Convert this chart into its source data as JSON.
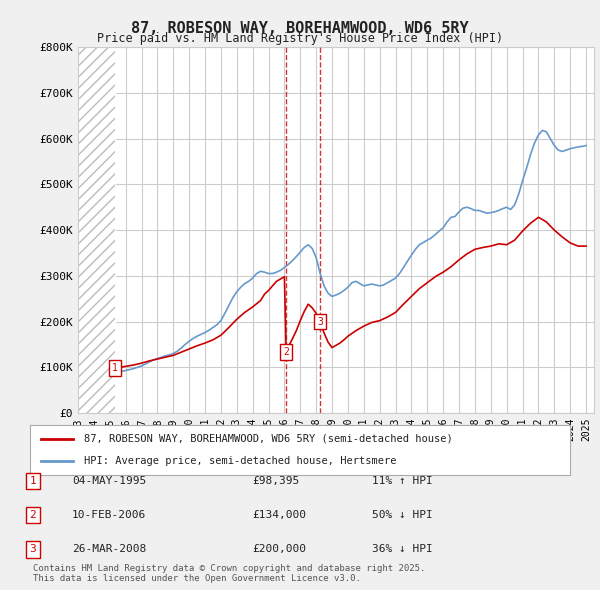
{
  "title": "87, ROBESON WAY, BOREHAMWOOD, WD6 5RY",
  "subtitle": "Price paid vs. HM Land Registry's House Price Index (HPI)",
  "background_color": "#f0f0f0",
  "plot_bg_color": "#ffffff",
  "hatch_color": "#cccccc",
  "grid_color": "#cccccc",
  "red_line_color": "#cc0000",
  "blue_line_color": "#6699cc",
  "ylim": [
    0,
    800000
  ],
  "yticks": [
    0,
    100000,
    200000,
    300000,
    400000,
    500000,
    600000,
    700000,
    800000
  ],
  "ytick_labels": [
    "£0",
    "£100K",
    "£200K",
    "£300K",
    "£400K",
    "£500K",
    "£600K",
    "£700K",
    "£800K"
  ],
  "xlim_start": 1993.0,
  "xlim_end": 2025.5,
  "transactions": [
    {
      "date_num": 1995.34,
      "price": 98395,
      "label": "1"
    },
    {
      "date_num": 2006.11,
      "price": 134000,
      "label": "2"
    },
    {
      "date_num": 2008.23,
      "price": 200000,
      "label": "3"
    }
  ],
  "transaction_table": [
    {
      "num": "1",
      "date": "04-MAY-1995",
      "price": "£98,395",
      "hpi": "11% ↑ HPI"
    },
    {
      "num": "2",
      "date": "10-FEB-2006",
      "price": "£134,000",
      "hpi": "50% ↓ HPI"
    },
    {
      "num": "3",
      "date": "26-MAR-2008",
      "price": "£200,000",
      "hpi": "36% ↓ HPI"
    }
  ],
  "legend_line1": "87, ROBESON WAY, BOREHAMWOOD, WD6 5RY (semi-detached house)",
  "legend_line2": "HPI: Average price, semi-detached house, Hertsmere",
  "footer": "Contains HM Land Registry data © Crown copyright and database right 2025.\nThis data is licensed under the Open Government Licence v3.0.",
  "hpi_data": {
    "years": [
      1995.0,
      1995.25,
      1995.5,
      1995.75,
      1996.0,
      1996.25,
      1996.5,
      1996.75,
      1997.0,
      1997.25,
      1997.5,
      1997.75,
      1998.0,
      1998.25,
      1998.5,
      1998.75,
      1999.0,
      1999.25,
      1999.5,
      1999.75,
      2000.0,
      2000.25,
      2000.5,
      2000.75,
      2001.0,
      2001.25,
      2001.5,
      2001.75,
      2002.0,
      2002.25,
      2002.5,
      2002.75,
      2003.0,
      2003.25,
      2003.5,
      2003.75,
      2004.0,
      2004.25,
      2004.5,
      2004.75,
      2005.0,
      2005.25,
      2005.5,
      2005.75,
      2006.0,
      2006.25,
      2006.5,
      2006.75,
      2007.0,
      2007.25,
      2007.5,
      2007.75,
      2008.0,
      2008.25,
      2008.5,
      2008.75,
      2009.0,
      2009.25,
      2009.5,
      2009.75,
      2010.0,
      2010.25,
      2010.5,
      2010.75,
      2011.0,
      2011.25,
      2011.5,
      2011.75,
      2012.0,
      2012.25,
      2012.5,
      2012.75,
      2013.0,
      2013.25,
      2013.5,
      2013.75,
      2014.0,
      2014.25,
      2014.5,
      2014.75,
      2015.0,
      2015.25,
      2015.5,
      2015.75,
      2016.0,
      2016.25,
      2016.5,
      2016.75,
      2017.0,
      2017.25,
      2017.5,
      2017.75,
      2018.0,
      2018.25,
      2018.5,
      2018.75,
      2019.0,
      2019.25,
      2019.5,
      2019.75,
      2020.0,
      2020.25,
      2020.5,
      2020.75,
      2021.0,
      2021.25,
      2021.5,
      2021.75,
      2022.0,
      2022.25,
      2022.5,
      2022.75,
      2023.0,
      2023.25,
      2023.5,
      2023.75,
      2024.0,
      2024.25,
      2024.5,
      2024.75,
      2025.0
    ],
    "values": [
      88000,
      89000,
      90000,
      91000,
      93000,
      95000,
      97000,
      100000,
      103000,
      107000,
      112000,
      116000,
      119000,
      122000,
      125000,
      127000,
      130000,
      135000,
      142000,
      150000,
      157000,
      163000,
      168000,
      172000,
      176000,
      181000,
      187000,
      193000,
      202000,
      218000,
      235000,
      252000,
      265000,
      275000,
      283000,
      288000,
      295000,
      305000,
      310000,
      308000,
      305000,
      305000,
      308000,
      312000,
      318000,
      325000,
      333000,
      342000,
      352000,
      362000,
      368000,
      360000,
      340000,
      305000,
      278000,
      262000,
      255000,
      258000,
      262000,
      268000,
      275000,
      285000,
      288000,
      283000,
      278000,
      280000,
      282000,
      280000,
      278000,
      280000,
      285000,
      290000,
      295000,
      305000,
      318000,
      332000,
      345000,
      358000,
      368000,
      373000,
      378000,
      383000,
      390000,
      398000,
      405000,
      418000,
      428000,
      430000,
      440000,
      448000,
      450000,
      447000,
      443000,
      443000,
      440000,
      437000,
      438000,
      440000,
      443000,
      447000,
      450000,
      445000,
      455000,
      478000,
      508000,
      535000,
      565000,
      590000,
      608000,
      618000,
      615000,
      600000,
      585000,
      575000,
      572000,
      575000,
      578000,
      580000,
      582000,
      583000,
      585000
    ]
  },
  "red_data": {
    "years": [
      1995.0,
      1995.34,
      1995.5,
      1996.0,
      1996.5,
      1997.0,
      1997.5,
      1998.0,
      1998.5,
      1999.0,
      1999.5,
      2000.0,
      2000.5,
      2001.0,
      2001.5,
      2002.0,
      2002.5,
      2003.0,
      2003.5,
      2004.0,
      2004.5,
      2004.75,
      2005.0,
      2005.25,
      2005.5,
      2006.0,
      2006.11,
      2006.25,
      2006.5,
      2006.75,
      2007.0,
      2007.25,
      2007.5,
      2007.75,
      2008.0,
      2008.23,
      2008.5,
      2008.75,
      2009.0,
      2009.25,
      2009.5,
      2009.75,
      2010.0,
      2010.5,
      2011.0,
      2011.5,
      2012.0,
      2012.5,
      2013.0,
      2013.5,
      2014.0,
      2014.5,
      2015.0,
      2015.5,
      2016.0,
      2016.5,
      2017.0,
      2017.5,
      2018.0,
      2018.5,
      2019.0,
      2019.5,
      2020.0,
      2020.5,
      2021.0,
      2021.5,
      2022.0,
      2022.5,
      2023.0,
      2023.5,
      2024.0,
      2024.5,
      2025.0
    ],
    "values": [
      98000,
      98395,
      99000,
      102000,
      105000,
      109000,
      114000,
      118000,
      122000,
      126000,
      133000,
      140000,
      147000,
      153000,
      160000,
      170000,
      187000,
      205000,
      220000,
      232000,
      246000,
      260000,
      268000,
      278000,
      288000,
      298000,
      134000,
      145000,
      162000,
      180000,
      202000,
      222000,
      238000,
      230000,
      218000,
      200000,
      175000,
      155000,
      143000,
      148000,
      153000,
      160000,
      168000,
      180000,
      190000,
      198000,
      202000,
      210000,
      220000,
      238000,
      255000,
      272000,
      285000,
      298000,
      308000,
      320000,
      335000,
      348000,
      358000,
      362000,
      365000,
      370000,
      368000,
      378000,
      398000,
      415000,
      428000,
      418000,
      400000,
      385000,
      372000,
      365000,
      365000
    ]
  },
  "dashed_line_dates": [
    2006.11,
    2008.23
  ],
  "hatch_end": 1995.34
}
